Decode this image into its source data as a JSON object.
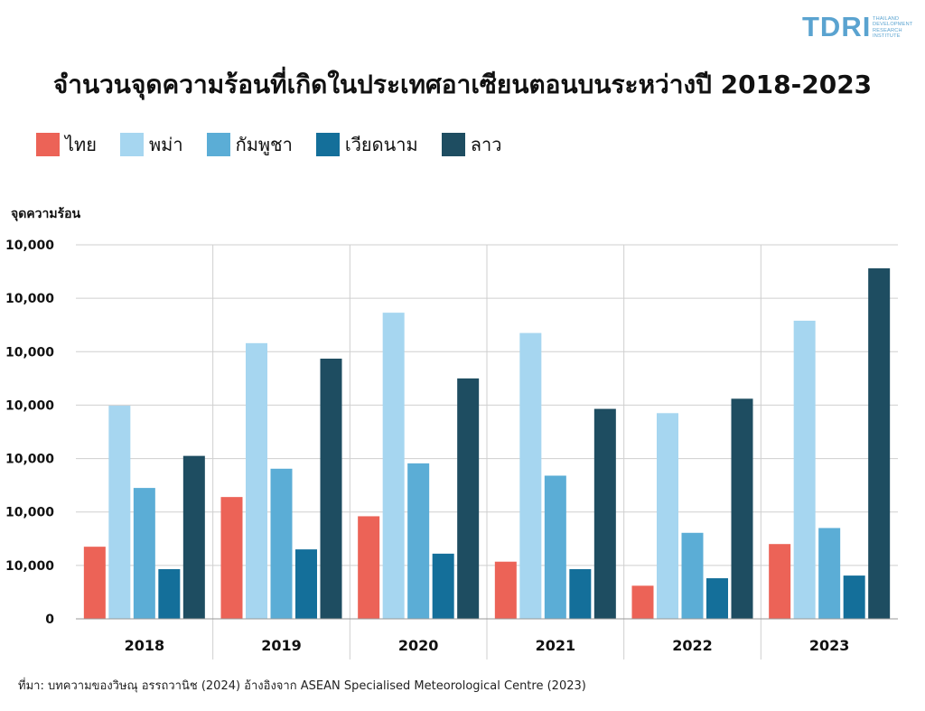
{
  "logo": {
    "text": "TDRI",
    "subtitle_lines": [
      "THAILAND",
      "DEVELOPMENT",
      "RESEARCH",
      "INSTITUTE"
    ],
    "color": "#5aa3d0"
  },
  "title": "จำนวนจุดความร้อนที่เกิดในประเทศอาเซียนตอนบนระหว่างปี 2018-2023",
  "source": "ที่มา: บทความของวิษณุ อรรถวานิช (2024) อ้างอิงจาก ASEAN Specialised Meteorological Centre (2023)",
  "chart_data": {
    "type": "bar",
    "ylabel": "จุดความร้อน",
    "categories": [
      "2018",
      "2019",
      "2020",
      "2021",
      "2022",
      "2023"
    ],
    "y_tick_labels": [
      "0",
      "10,000",
      "10,000",
      "10,000",
      "10,000",
      "10,000",
      "10,000",
      "10,000"
    ],
    "y_range_in_grid_units": [
      0,
      7
    ],
    "grid": "horizontal",
    "legend_position": "top-left",
    "series": [
      {
        "name": "ไทย",
        "color": "#ec6357",
        "values": [
          1.35,
          2.28,
          1.92,
          1.07,
          0.62,
          1.4
        ]
      },
      {
        "name": "พม่า",
        "color": "#a6d6f0",
        "values": [
          3.99,
          5.16,
          5.73,
          5.35,
          3.85,
          5.58
        ]
      },
      {
        "name": "กัมพูชา",
        "color": "#5badd6",
        "values": [
          2.45,
          2.81,
          2.91,
          2.68,
          1.61,
          1.7
        ]
      },
      {
        "name": "เวียดนาม",
        "color": "#146f9a",
        "values": [
          0.93,
          1.3,
          1.22,
          0.93,
          0.76,
          0.81
        ]
      },
      {
        "name": "ลาว",
        "color": "#1e4d61",
        "values": [
          3.05,
          4.87,
          4.5,
          3.93,
          4.12,
          6.56
        ]
      }
    ]
  }
}
